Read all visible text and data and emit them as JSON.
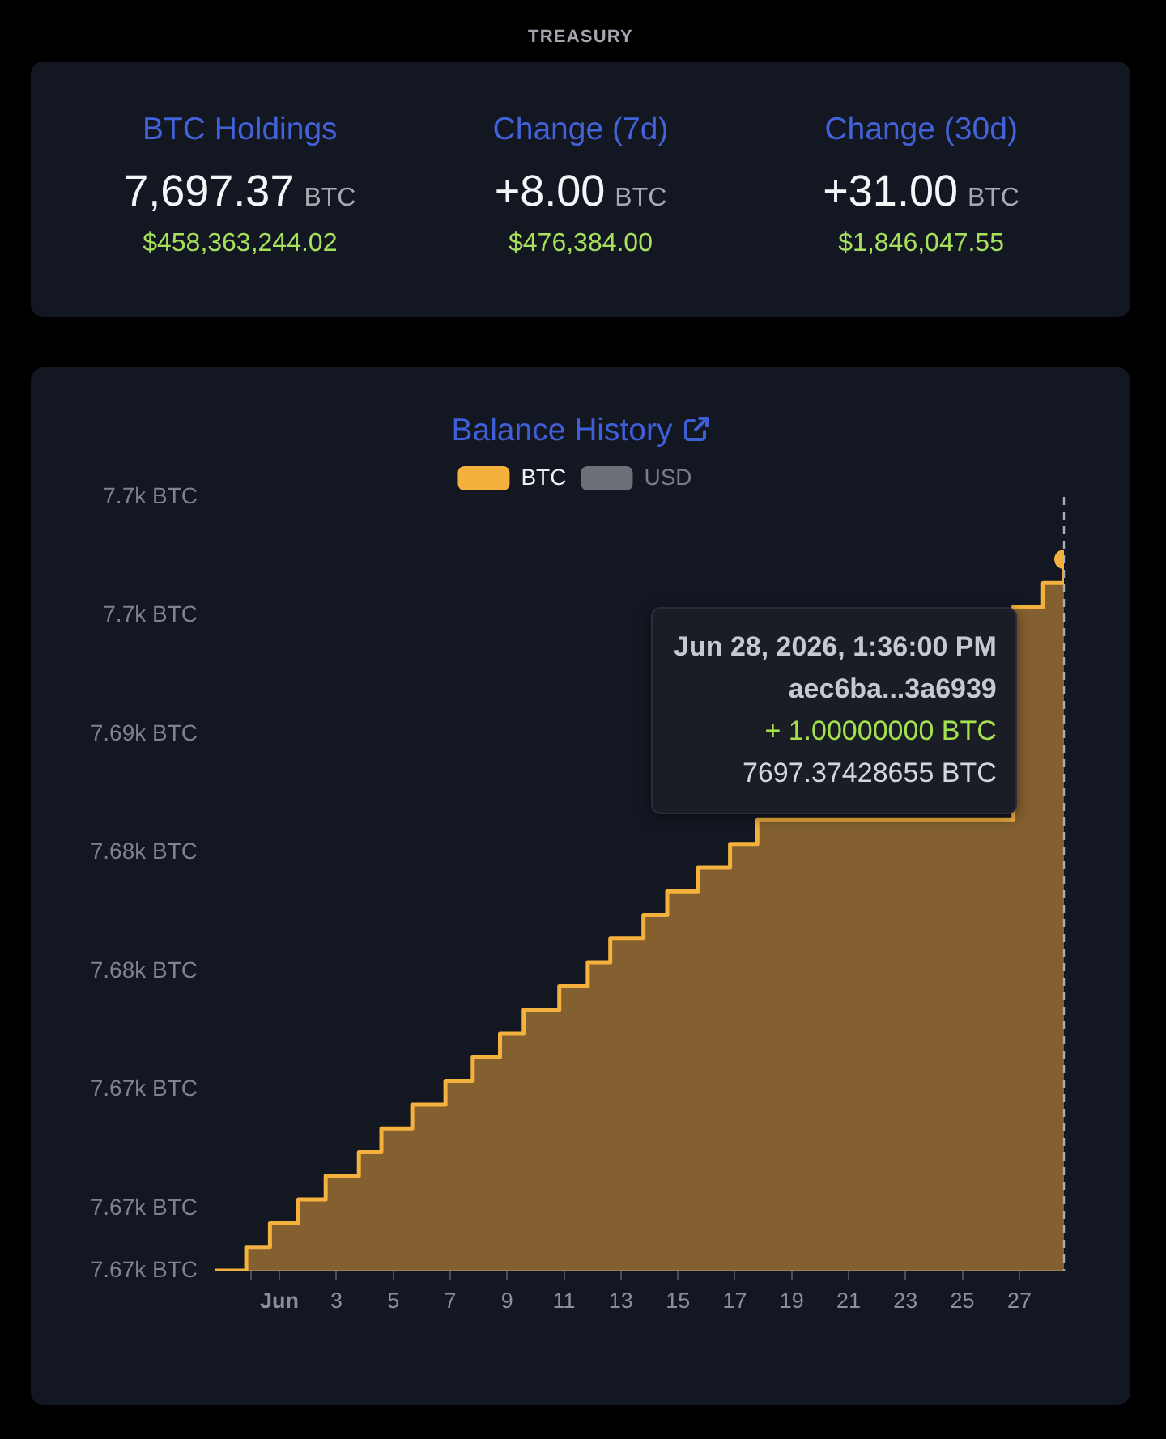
{
  "chart_data": [
    {
      "type": "other",
      "title": "TREASURY",
      "annotations": [
        "BTC Holdings",
        "7,697.37",
        "BTC",
        "$458,363,244.02",
        "Change (7d)",
        "+8.00",
        "BTC",
        "$476,384.00",
        "Change (30d)",
        "+31.00",
        "BTC",
        "$1,846,047.55"
      ]
    },
    {
      "type": "area",
      "title": "Balance History",
      "x": [
        "2026-05-29T18:00",
        "2026-05-30T20:00",
        "2026-05-31T16:00",
        "2026-06-01T16:00",
        "2026-06-02T15:00",
        "2026-06-03T19:00",
        "2026-06-04T14:00",
        "2026-06-05T16:00",
        "2026-06-06T20:00",
        "2026-06-07T19:00",
        "2026-06-08T18:00",
        "2026-06-09T14:00",
        "2026-06-10T20:00",
        "2026-06-11T20:00",
        "2026-06-12T15:00",
        "2026-06-13T19:00",
        "2026-06-14T15:00",
        "2026-06-15T17:00",
        "2026-06-16T20:00",
        "2026-06-17T19:00",
        "2026-06-18",
        "2026-06-19",
        "2026-06-20",
        "2026-06-21",
        "2026-06-22",
        "2026-06-23",
        "2026-06-24",
        "2026-06-25",
        "2026-06-26T19:00",
        "2026-06-27T20:00",
        "2026-06-28T13:36"
      ],
      "series": [
        {
          "type": "step",
          "name": "BTC",
          "color": "#f5b13d",
          "values": [
            7667.37,
            7668.37,
            7669.37,
            7670.37,
            7671.37,
            7672.37,
            7673.37,
            7674.37,
            7675.37,
            7676.37,
            7677.37,
            7678.37,
            7679.37,
            7680.37,
            7681.37,
            7682.37,
            7683.37,
            7684.37,
            7685.37,
            7686.37,
            null,
            null,
            null,
            null,
            null,
            null,
            null,
            null,
            7695.37,
            7696.37,
            7697.37
          ]
        },
        {
          "name": "USD",
          "color": "#6c7079",
          "values": [
            null,
            null,
            null,
            null,
            null,
            null,
            null,
            null,
            null,
            null,
            null,
            null,
            null,
            null,
            null,
            null,
            null,
            null,
            null,
            null,
            null,
            null,
            null,
            null,
            null,
            null,
            null,
            null,
            null,
            null,
            null
          ]
        },
        {
          "type": "scatter",
          "color": "#f5b13d",
          "marker": "circle",
          "x": [
            "2026-06-28T13:36"
          ],
          "values": [
            7697.37
          ]
        }
      ],
      "xlim": [
        "2026-05-29T18:00",
        "2026-06-28T13:36"
      ],
      "xticks": [
        {
          "value": "2026-05-31",
          "label": null
        },
        {
          "value": "2026-06-01",
          "label": "Jun"
        },
        {
          "value": "2026-06-03",
          "label": "3"
        },
        {
          "value": "2026-06-05",
          "label": "5"
        },
        {
          "value": "2026-06-07",
          "label": "7"
        },
        {
          "value": "2026-06-09",
          "label": "9"
        },
        {
          "value": "2026-06-11",
          "label": "11"
        },
        {
          "value": "2026-06-13",
          "label": "13"
        },
        {
          "value": "2026-06-15",
          "label": "15"
        },
        {
          "value": "2026-06-17",
          "label": "17"
        },
        {
          "value": "2026-06-19",
          "label": "19"
        },
        {
          "value": "2026-06-21",
          "label": "21"
        },
        {
          "value": "2026-06-23",
          "label": "23"
        },
        {
          "value": "2026-06-25",
          "label": "25"
        },
        {
          "value": "2026-06-27",
          "label": "27"
        }
      ],
      "ylim": [
        7667.37,
        7700
      ],
      "yticks": [
        {
          "value": 7667.37,
          "label": "7.67k BTC"
        },
        {
          "value": 7670,
          "label": "7.67k BTC"
        },
        {
          "value": 7675,
          "label": "7.67k BTC"
        },
        {
          "value": 7680,
          "label": "7.68k BTC"
        },
        {
          "value": 7685,
          "label": "7.68k BTC"
        },
        {
          "value": 7690,
          "label": "7.69k BTC"
        },
        {
          "value": 7695,
          "label": "7.7k BTC"
        },
        {
          "value": 7700,
          "label": "7.7k BTC"
        }
      ],
      "ref_lines": [
        {
          "axis": "x",
          "value": "2026-06-28T13:36",
          "color": "#a9adb5",
          "line_style": "dashed"
        }
      ],
      "annotations": [
        "Jun 28, 2026, 1:36:00 PM\naec6ba...3a6939\n+ 1.00000000 BTC\n7697.37428655 BTC"
      ],
      "legend": "top",
      "marker": "none"
    }
  ]
}
